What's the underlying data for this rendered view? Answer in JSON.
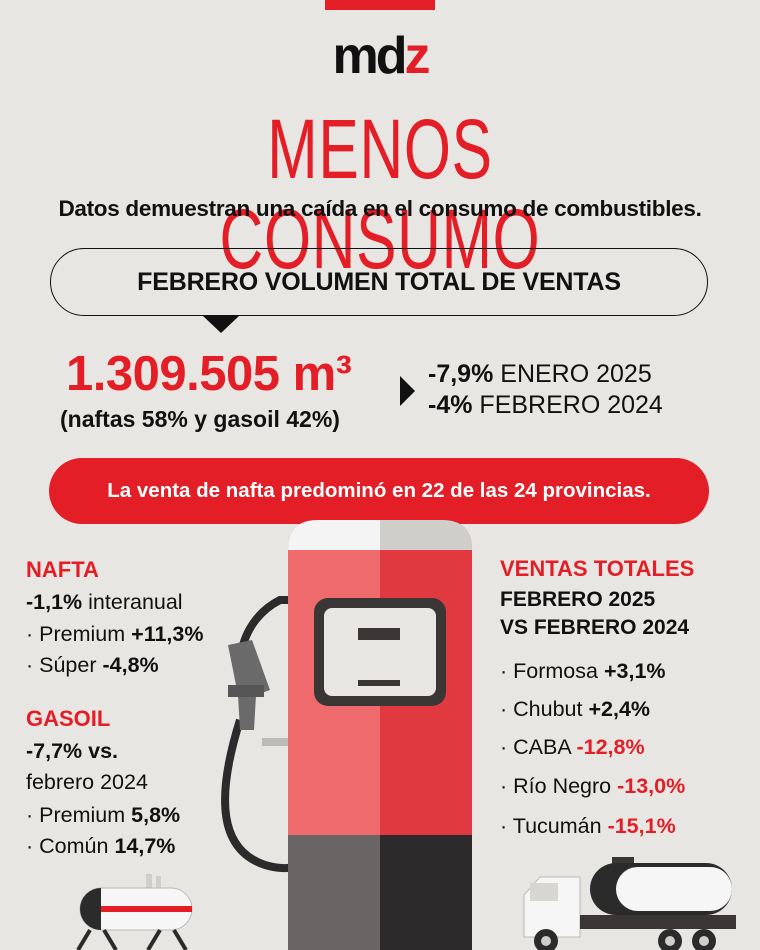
{
  "brand": {
    "logo_part1": "md",
    "logo_part2": "z"
  },
  "title": "MENOS CONSUMO",
  "subtitle": "Datos demuestran una caída en el consumo de combustibles.",
  "section_pill": "FEBRERO VOLUMEN TOTAL DE VENTAS",
  "volume": {
    "total": "1.309.505 m³",
    "mix": "(naftas 58% y gasoil 42%)"
  },
  "comparisons": [
    {
      "value": "-7,9%",
      "label": "ENERO 2025"
    },
    {
      "value": "-4%",
      "label": "FEBRERO 2024"
    }
  ],
  "banner": "La venta de nafta predominó en 22 de las 24 provincias.",
  "nafta": {
    "heading": "NAFTA",
    "summary_value": "-1,1%",
    "summary_label": "interanual",
    "items": [
      {
        "label": "· Premium",
        "value": "+11,3%"
      },
      {
        "label": "· Súper",
        "value": "-4,8%"
      }
    ]
  },
  "gasoil": {
    "heading": "GASOIL",
    "summary_value": "-7,7% vs.",
    "summary_label": "febrero 2024",
    "items": [
      {
        "label": "· Premium",
        "value": "5,8%"
      },
      {
        "label": "· Común",
        "value": "14,7%"
      }
    ]
  },
  "ventas": {
    "heading": "VENTAS TOTALES",
    "subheading_1": "FEBRERO 2025",
    "subheading_2": "VS FEBRERO 2024",
    "items": [
      {
        "label": "· Formosa",
        "value": "+3,1%",
        "negative": false
      },
      {
        "label": "· Chubut",
        "value": "+2,4%",
        "negative": false
      },
      {
        "label": "· CABA",
        "value": "-12,8%",
        "negative": true
      },
      {
        "label": "· Río Negro",
        "value": "-13,0%",
        "negative": true
      },
      {
        "label": "· Tucumán",
        "value": "-15,1%",
        "negative": true
      }
    ]
  },
  "colors": {
    "accent": "#e41e26",
    "background": "#e8e6e3",
    "pump_light": "#f06b6e",
    "pump_dark": "#e0393f"
  },
  "icons": [
    "fuel-pump-illustration",
    "fuel-tank-illustration",
    "tanker-truck-illustration"
  ]
}
